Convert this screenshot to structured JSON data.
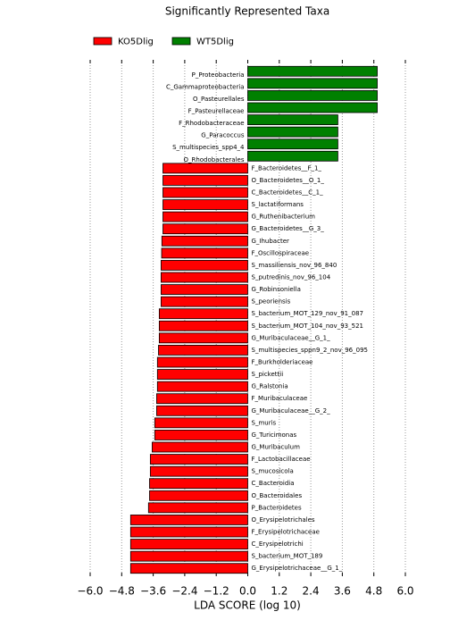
{
  "chart_data": {
    "type": "bar",
    "orientation": "horizontal",
    "title": "Significantly Represented Taxa",
    "xlabel": "LDA SCORE (log 10)",
    "categories": [
      "P_Proteobacteria",
      "C_Gammaproteobacteria",
      "O_Pasteurellales",
      "F_Pasteurellaceae",
      "F_Rhodobacteraceae",
      "G_Paracoccus",
      "S_multispecies_spp4_4",
      "O_Rhodobacterales",
      "F_Bacteroidetes__F_1_",
      "O_Bacteroidetes__O_1_",
      "C_Bacteroidetes__C_1_",
      "S_lactatiformans",
      "G_Ruthenibacterium",
      "G_Bacteroidetes__G_3_",
      "G_Ihubacter",
      "F_Oscillospiraceae",
      "S_massiliensis_nov_96_840",
      "S_putredinis_nov_96_104",
      "G_Robinsoniella",
      "S_peoriensis",
      "S_bacterium_MOT_129_nov_91_087",
      "S_bacterium_MOT_104_nov_93_521",
      "G_Muribaculaceae__G_1_",
      "S_multispecies_sppn9_2_nov_96_095",
      "F_Burkholderiaceae",
      "S_pickettii",
      "G_Ralstonia",
      "F_Muribaculaceae",
      "G_Muribaculaceae__G_2_",
      "S_muris",
      "G_Turicimonas",
      "G_Muribaculum",
      "F_Lactobacillaceae",
      "S_mucosicola",
      "C_Bacteroidia",
      "O_Bacteroidales",
      "P_Bacteroidetes",
      "O_Erysipelotrichales",
      "F_Erysipelotrichaceae",
      "C_Erysipelotrichi",
      "S_bacterium_MOT_189",
      "G_Erysipelotrichaceae__G_1_"
    ],
    "series": [
      {
        "name": "KO5Dlig",
        "color": "#ff0000",
        "values": [
          null,
          null,
          null,
          null,
          null,
          null,
          null,
          null,
          -3.23,
          -3.23,
          -3.23,
          -3.23,
          -3.23,
          -3.23,
          -3.27,
          -3.28,
          -3.3,
          -3.3,
          -3.3,
          -3.3,
          -3.37,
          -3.37,
          -3.37,
          -3.4,
          -3.44,
          -3.44,
          -3.44,
          -3.47,
          -3.47,
          -3.54,
          -3.54,
          -3.64,
          -3.71,
          -3.71,
          -3.74,
          -3.74,
          -3.78,
          -4.46,
          -4.46,
          -4.46,
          -4.46,
          -4.46
        ]
      },
      {
        "name": "WT5Dlig",
        "color": "#008000",
        "values": [
          4.93,
          4.93,
          4.93,
          4.93,
          3.43,
          3.43,
          3.43,
          3.43,
          null,
          null,
          null,
          null,
          null,
          null,
          null,
          null,
          null,
          null,
          null,
          null,
          null,
          null,
          null,
          null,
          null,
          null,
          null,
          null,
          null,
          null,
          null,
          null,
          null,
          null,
          null,
          null,
          null,
          null,
          null,
          null,
          null,
          null
        ]
      }
    ],
    "xlim": [
      -6.0,
      6.0
    ],
    "xticks": [
      {
        "value": -6.0,
        "label": "−6.0"
      },
      {
        "value": -4.8,
        "label": "−4.8"
      },
      {
        "value": -3.6,
        "label": "−3.6"
      },
      {
        "value": -2.4,
        "label": "−2.4"
      },
      {
        "value": -1.2,
        "label": "−1.2"
      },
      {
        "value": 0.0,
        "label": "0.0"
      },
      {
        "value": 1.2,
        "label": "1.2"
      },
      {
        "value": 2.4,
        "label": "2.4"
      },
      {
        "value": 3.6,
        "label": "3.6"
      },
      {
        "value": 4.8,
        "label": "4.8"
      },
      {
        "value": 6.0,
        "label": "6.0"
      }
    ],
    "grid": true
  }
}
